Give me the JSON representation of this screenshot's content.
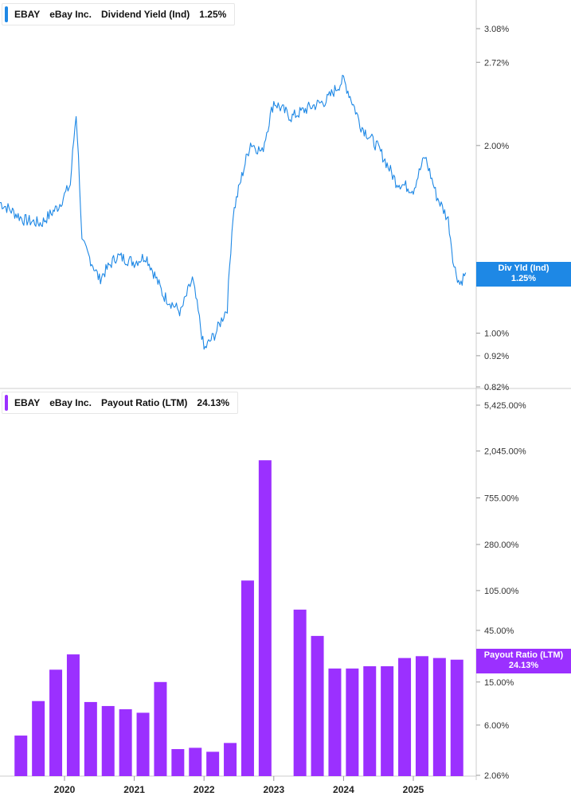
{
  "top_panel": {
    "legend": {
      "ticker": "EBAY",
      "company": "eBay Inc.",
      "metric": "Dividend Yield (Ind)",
      "value": "1.25%"
    },
    "tag": {
      "label": "Div Yld (Ind)",
      "value": "1.25%"
    },
    "color": "#1e88e5"
  },
  "bottom_panel": {
    "legend": {
      "ticker": "EBAY",
      "company": "eBay Inc.",
      "metric": "Payout Ratio (LTM)",
      "value": "24.13%"
    },
    "tag": {
      "label": "Payout Ratio (LTM)",
      "value": "24.13%"
    },
    "color": "#9b30ff"
  },
  "chart_data": [
    {
      "type": "line",
      "series": [
        {
          "name": "Div Yld (Ind)"
        }
      ],
      "scale": "log",
      "y_ticks": [
        "3.08%",
        "2.72%",
        "2.00%",
        "1.00%",
        "0.92%",
        "0.82%"
      ],
      "y_tick_values": [
        3.08,
        2.72,
        2.0,
        1.0,
        0.92,
        0.82
      ],
      "x": [
        "2019-03",
        "2019-06",
        "2019-09",
        "2019-12",
        "2020-02",
        "2020-03",
        "2020-04",
        "2020-07",
        "2020-10",
        "2021-01",
        "2021-03",
        "2021-06",
        "2021-09",
        "2021-11",
        "2022-01",
        "2022-03",
        "2022-05",
        "2022-06",
        "2022-09",
        "2022-11",
        "2023-01",
        "2023-04",
        "2023-07",
        "2023-10",
        "2024-01",
        "2024-04",
        "2024-07",
        "2024-10",
        "2025-01",
        "2025-03",
        "2025-05",
        "2025-07",
        "2025-08",
        "2025-09",
        "2025-10"
      ],
      "values": [
        1.62,
        1.52,
        1.5,
        1.6,
        1.73,
        2.25,
        1.4,
        1.22,
        1.33,
        1.3,
        1.33,
        1.15,
        1.08,
        1.22,
        0.94,
        1.0,
        1.1,
        1.55,
        2.02,
        1.95,
        2.35,
        2.22,
        2.3,
        2.36,
        2.55,
        2.15,
        1.98,
        1.75,
        1.7,
        1.92,
        1.66,
        1.52,
        1.28,
        1.2,
        1.25
      ]
    },
    {
      "type": "bar",
      "series": [
        {
          "name": "Payout Ratio (LTM)"
        }
      ],
      "scale": "log",
      "y_ticks": [
        "5,425.00%",
        "2,045.00%",
        "755.00%",
        "280.00%",
        "105.00%",
        "45.00%",
        "15.00%",
        "6.00%",
        "2.06%"
      ],
      "y_tick_values": [
        5425,
        2045,
        755,
        280,
        105,
        45,
        15,
        6,
        2.06
      ],
      "x_ticks": [
        "2020",
        "2021",
        "2022",
        "2023",
        "2024",
        "2025"
      ],
      "categories": [
        "2019-Q2",
        "2019-Q3",
        "2019-Q4",
        "2020-Q1",
        "2020-Q2",
        "2020-Q3",
        "2020-Q4",
        "2021-Q1",
        "2021-Q2",
        "2021-Q3",
        "2021-Q4",
        "2022-Q1",
        "2022-Q2",
        "2022-Q3",
        "2022-Q4",
        "2023-Q1",
        "2023-Q2",
        "2023-Q3",
        "2023-Q4",
        "2024-Q1",
        "2024-Q2",
        "2024-Q3",
        "2024-Q4",
        "2025-Q1",
        "2025-Q2",
        "2025-Q3"
      ],
      "values": [
        4.8,
        10.0,
        19.5,
        27.0,
        9.8,
        9.0,
        8.4,
        7.8,
        15.0,
        3.6,
        3.7,
        3.4,
        4.1,
        130.0,
        1680.0,
        null,
        70.0,
        40.0,
        20.0,
        20.0,
        21.0,
        21.0,
        25.0,
        26.0,
        25.0,
        24.13
      ]
    }
  ]
}
